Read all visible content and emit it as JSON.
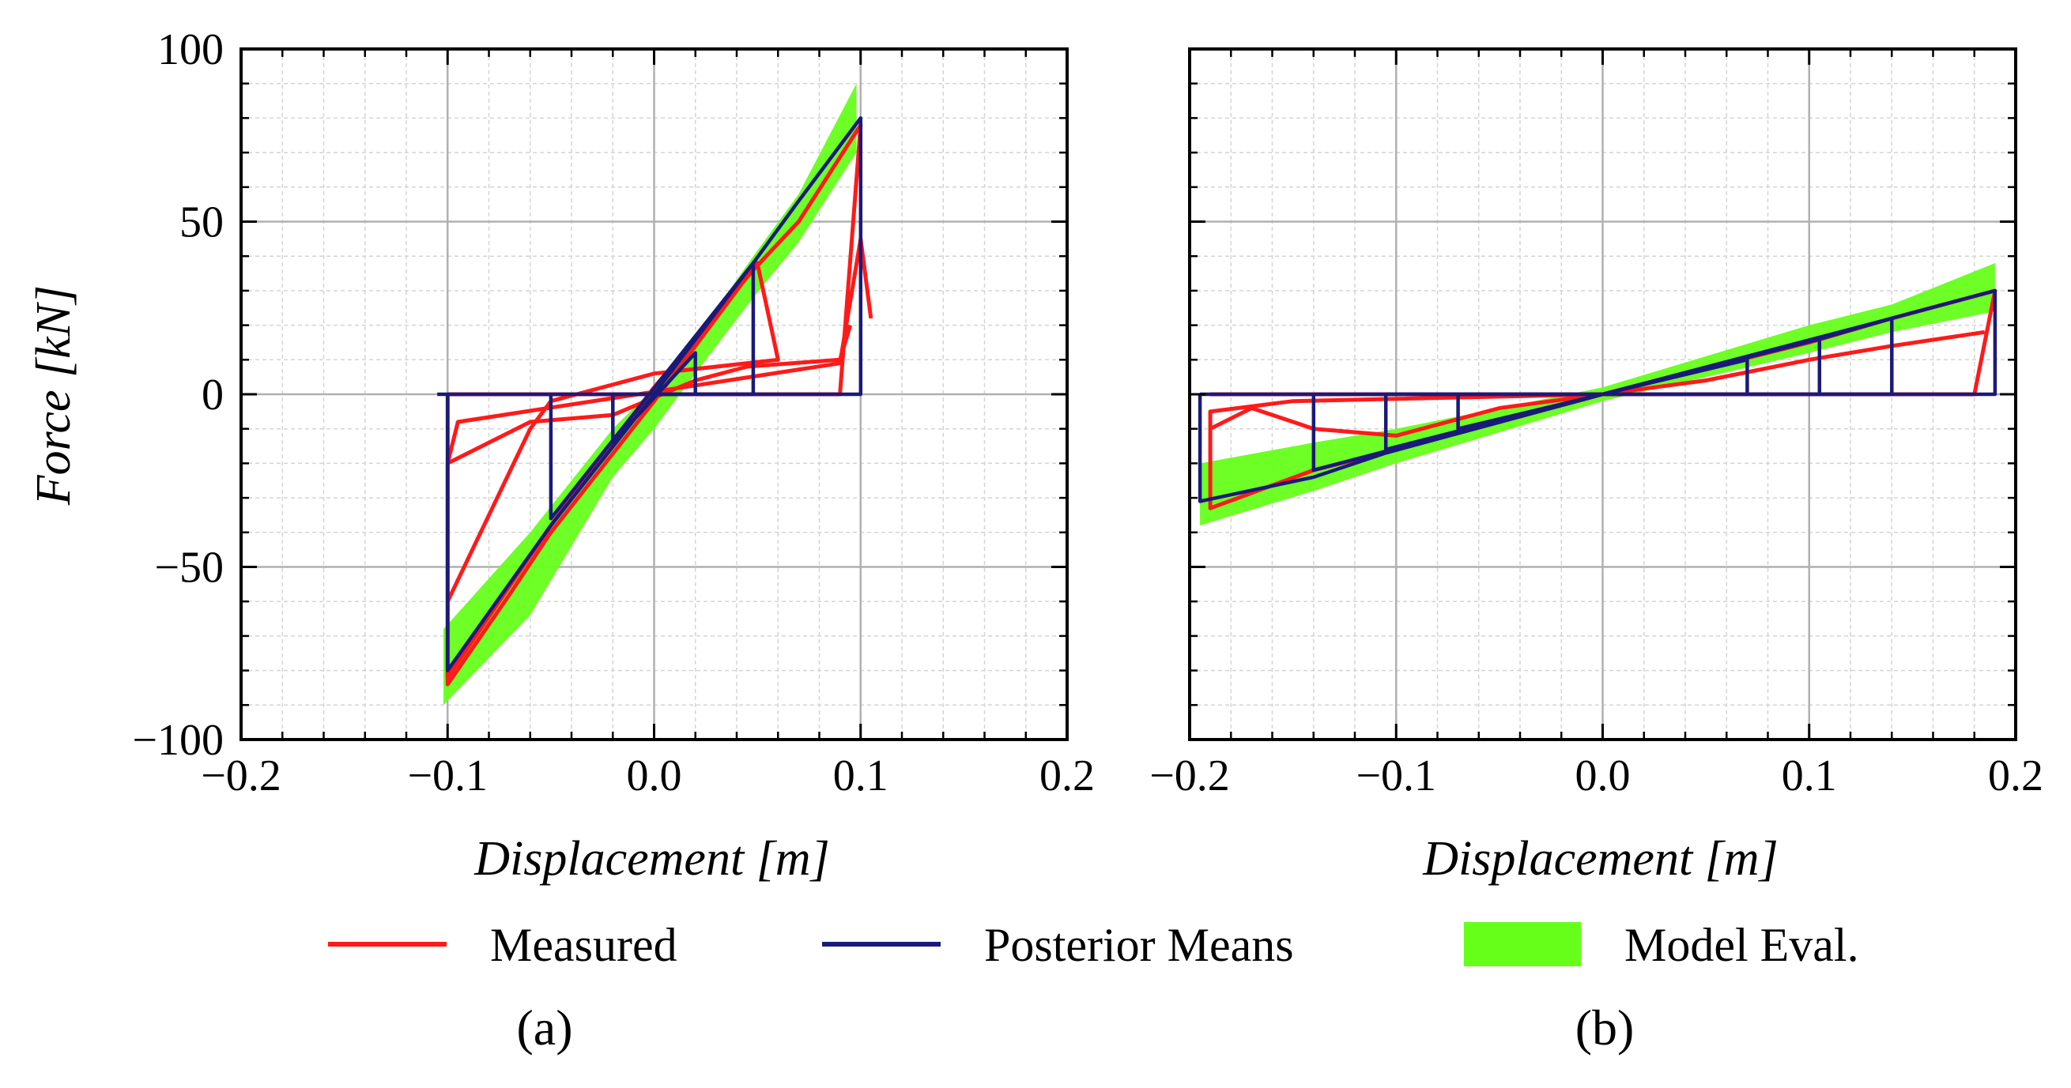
{
  "colors": {
    "measured": "#ff1a1a",
    "posterior": "#1a1a7a",
    "model_eval": "#66ff1a"
  },
  "legend": {
    "measured": "Measured",
    "posterior": "Posterior Means",
    "model_eval": "Model Eval."
  },
  "chart_data": [
    {
      "type": "line",
      "panel_label": "(a)",
      "xlabel": "Displacement [m]",
      "ylabel": "Force [kN]",
      "xlim": [
        -0.2,
        0.2
      ],
      "ylim": [
        -100,
        100
      ],
      "xticks": [
        -0.2,
        -0.1,
        0.0,
        0.1,
        0.2
      ],
      "xtick_labels": [
        "−0.2",
        "−0.1",
        "0.0",
        "0.1",
        "0.2"
      ],
      "yticks": [
        100,
        50,
        0,
        -50,
        -100
      ],
      "ytick_labels": [
        "100",
        "50",
        "0",
        "−50",
        "−100"
      ],
      "grid": true,
      "series": [
        {
          "name": "Model Eval.",
          "kind": "band",
          "upper": [
            [
              -0.102,
              -68
            ],
            [
              -0.06,
              -40
            ],
            [
              -0.02,
              -10
            ],
            [
              0.0,
              2
            ],
            [
              0.02,
              16
            ],
            [
              0.048,
              40
            ],
            [
              0.07,
              58
            ],
            [
              0.098,
              90
            ]
          ],
          "lower": [
            [
              -0.102,
              -90
            ],
            [
              -0.06,
              -64
            ],
            [
              -0.02,
              -24
            ],
            [
              0.0,
              -10
            ],
            [
              0.02,
              6
            ],
            [
              0.048,
              28
            ],
            [
              0.07,
              44
            ],
            [
              0.098,
              70
            ]
          ]
        },
        {
          "name": "Measured",
          "kind": "path",
          "points": [
            [
              -0.1,
              0
            ],
            [
              0.09,
              0
            ],
            [
              0.1,
              78
            ],
            [
              0.07,
              50
            ],
            [
              0.048,
              36
            ],
            [
              0.0,
              2
            ],
            [
              -0.05,
              -38
            ],
            [
              -0.1,
              -82
            ],
            [
              -0.1,
              -20
            ],
            [
              -0.095,
              -8
            ],
            [
              0.09,
              9
            ],
            [
              0.1,
              45
            ],
            [
              0.105,
              22
            ]
          ]
        },
        {
          "name": "Measured",
          "kind": "path",
          "points": [
            [
              -0.1,
              0
            ],
            [
              -0.1,
              -84
            ],
            [
              -0.07,
              -58
            ],
            [
              -0.05,
              -40
            ],
            [
              0.0,
              -2
            ],
            [
              0.05,
              38
            ],
            [
              0.06,
              10
            ],
            [
              0.0,
              6
            ],
            [
              -0.05,
              -2
            ],
            [
              -0.06,
              -10
            ],
            [
              -0.1,
              -60
            ]
          ]
        },
        {
          "name": "Measured",
          "kind": "path",
          "points": [
            [
              -0.1,
              -20
            ],
            [
              -0.06,
              -8
            ],
            [
              -0.02,
              -6
            ],
            [
              0.02,
              4
            ],
            [
              0.045,
              8
            ],
            [
              0.09,
              10
            ],
            [
              0.095,
              20
            ]
          ]
        },
        {
          "name": "Posterior Means",
          "kind": "path",
          "points": [
            [
              -0.105,
              0
            ],
            [
              0.1,
              0
            ],
            [
              0.1,
              80
            ],
            [
              0.07,
              56
            ],
            [
              0.048,
              38
            ],
            [
              0.0,
              0
            ],
            [
              -0.05,
              -38
            ],
            [
              -0.1,
              -80
            ],
            [
              -0.1,
              0
            ]
          ]
        },
        {
          "name": "Posterior Means",
          "kind": "path",
          "points": [
            [
              -0.05,
              0
            ],
            [
              -0.05,
              -36
            ],
            [
              0.048,
              38
            ],
            [
              0.048,
              0
            ],
            [
              -0.02,
              0
            ],
            [
              -0.02,
              -14
            ],
            [
              0.02,
              12
            ],
            [
              0.02,
              0
            ]
          ]
        }
      ]
    },
    {
      "type": "line",
      "panel_label": "(b)",
      "xlabel": "Displacement [m]",
      "ylabel": "",
      "xlim": [
        -0.2,
        0.2
      ],
      "ylim": [
        -100,
        100
      ],
      "xticks": [
        -0.2,
        -0.1,
        0.0,
        0.1,
        0.2
      ],
      "xtick_labels": [
        "−0.2",
        "−0.1",
        "0.0",
        "0.1",
        "0.2"
      ],
      "yticks": [],
      "ytick_labels": [],
      "grid": true,
      "series": [
        {
          "name": "Model Eval.",
          "kind": "band",
          "upper": [
            [
              -0.195,
              -20
            ],
            [
              -0.14,
              -14
            ],
            [
              -0.1,
              -10
            ],
            [
              0.0,
              2
            ],
            [
              0.1,
              20
            ],
            [
              0.14,
              26
            ],
            [
              0.19,
              38
            ]
          ],
          "lower": [
            [
              -0.195,
              -38
            ],
            [
              -0.14,
              -28
            ],
            [
              -0.1,
              -20
            ],
            [
              0.0,
              -2
            ],
            [
              0.1,
              12
            ],
            [
              0.14,
              18
            ],
            [
              0.19,
              24
            ]
          ]
        },
        {
          "name": "Measured",
          "kind": "path",
          "points": [
            [
              -0.19,
              0
            ],
            [
              0.18,
              0
            ],
            [
              0.19,
              30
            ],
            [
              0.14,
              22
            ],
            [
              0.1,
              15
            ],
            [
              0.0,
              0
            ],
            [
              -0.1,
              -16
            ],
            [
              -0.14,
              -22
            ],
            [
              -0.19,
              -33
            ],
            [
              -0.19,
              -5
            ],
            [
              -0.15,
              -2
            ],
            [
              0.0,
              0
            ]
          ]
        },
        {
          "name": "Measured",
          "kind": "path",
          "points": [
            [
              -0.19,
              -10
            ],
            [
              -0.17,
              -4
            ],
            [
              -0.14,
              -10
            ],
            [
              -0.1,
              -12
            ],
            [
              -0.05,
              -4
            ],
            [
              0.05,
              4
            ],
            [
              0.1,
              10
            ],
            [
              0.14,
              14
            ],
            [
              0.185,
              18
            ]
          ]
        },
        {
          "name": "Posterior Means",
          "kind": "path",
          "points": [
            [
              -0.195,
              0
            ],
            [
              0.19,
              0
            ],
            [
              0.19,
              30
            ],
            [
              0.14,
              22
            ],
            [
              0.105,
              16
            ],
            [
              0.0,
              0
            ],
            [
              -0.105,
              -17
            ],
            [
              -0.14,
              -24
            ],
            [
              -0.195,
              -31
            ],
            [
              -0.195,
              0
            ]
          ]
        },
        {
          "name": "Posterior Means",
          "kind": "path",
          "points": [
            [
              -0.14,
              0
            ],
            [
              -0.14,
              -22
            ],
            [
              0.14,
              22
            ],
            [
              0.14,
              0
            ],
            [
              -0.105,
              0
            ],
            [
              -0.105,
              -16
            ],
            [
              0.105,
              16
            ],
            [
              0.105,
              0
            ],
            [
              -0.07,
              0
            ],
            [
              -0.07,
              -10
            ],
            [
              0.07,
              10
            ],
            [
              0.07,
              0
            ]
          ]
        }
      ]
    }
  ]
}
